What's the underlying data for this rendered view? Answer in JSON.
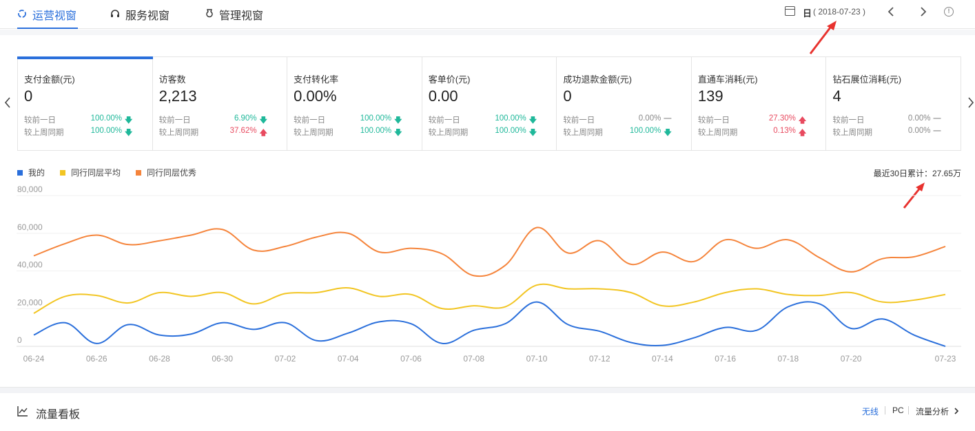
{
  "tabs": [
    {
      "label": "运营视窗",
      "icon": "operations-icon",
      "active": true
    },
    {
      "label": "服务视窗",
      "icon": "headset-icon",
      "active": false
    },
    {
      "label": "管理视窗",
      "icon": "management-icon",
      "active": false
    }
  ],
  "date": {
    "period": "日",
    "value": "( 2018-07-23 )"
  },
  "metrics": [
    {
      "title": "支付金额(元)",
      "value": "0",
      "cmp": [
        {
          "label": "较前一日",
          "value": "100.00%",
          "dir": "down"
        },
        {
          "label": "较上周同期",
          "value": "100.00%",
          "dir": "down"
        }
      ]
    },
    {
      "title": "访客数",
      "value": "2,213",
      "cmp": [
        {
          "label": "较前一日",
          "value": "6.90%",
          "dir": "down"
        },
        {
          "label": "较上周同期",
          "value": "37.62%",
          "dir": "up"
        }
      ]
    },
    {
      "title": "支付转化率",
      "value": "0.00%",
      "cmp": [
        {
          "label": "较前一日",
          "value": "100.00%",
          "dir": "down"
        },
        {
          "label": "较上周同期",
          "value": "100.00%",
          "dir": "down"
        }
      ]
    },
    {
      "title": "客单价(元)",
      "value": "0.00",
      "cmp": [
        {
          "label": "较前一日",
          "value": "100.00%",
          "dir": "down"
        },
        {
          "label": "较上周同期",
          "value": "100.00%",
          "dir": "down"
        }
      ]
    },
    {
      "title": "成功退款金额(元)",
      "value": "0",
      "cmp": [
        {
          "label": "较前一日",
          "value": "0.00%",
          "dir": "flat"
        },
        {
          "label": "较上周同期",
          "value": "100.00%",
          "dir": "down"
        }
      ]
    },
    {
      "title": "直通车消耗(元)",
      "value": "139",
      "cmp": [
        {
          "label": "较前一日",
          "value": "27.30%",
          "dir": "up"
        },
        {
          "label": "较上周同期",
          "value": "0.13%",
          "dir": "up"
        }
      ]
    },
    {
      "title": "钻石展位消耗(元)",
      "value": "4",
      "cmp": [
        {
          "label": "较前一日",
          "value": "0.00%",
          "dir": "flat"
        },
        {
          "label": "较上周同期",
          "value": "0.00%",
          "dir": "flat"
        }
      ]
    }
  ],
  "arrows": {
    "up": "🡅",
    "down": "🡇",
    "flat": "—"
  },
  "colors": {
    "accent": "#2a6fdb",
    "up": "#e84a5f",
    "down": "#1fb89a",
    "mine": "#2a6fdb",
    "avg": "#f2c522",
    "top": "#f5843b"
  },
  "legend": [
    {
      "label": "我的",
      "color": "#2a6fdb"
    },
    {
      "label": "同行同层平均",
      "color": "#f2c522"
    },
    {
      "label": "同行同层优秀",
      "color": "#f5843b"
    }
  ],
  "total_label": "最近30日累计：27.65万",
  "chart_data": {
    "type": "line",
    "x": [
      "06-24",
      "06-25",
      "06-26",
      "06-27",
      "06-28",
      "06-29",
      "06-30",
      "07-01",
      "07-02",
      "07-03",
      "07-04",
      "07-05",
      "07-06",
      "07-07",
      "07-08",
      "07-09",
      "07-10",
      "07-11",
      "07-12",
      "07-13",
      "07-14",
      "07-15",
      "07-16",
      "07-17",
      "07-18",
      "07-19",
      "07-20",
      "07-21",
      "07-22",
      "07-23"
    ],
    "x_tick_labels": [
      "06-24",
      "06-26",
      "06-28",
      "06-30",
      "07-02",
      "07-04",
      "07-06",
      "07-08",
      "07-10",
      "07-12",
      "07-14",
      "07-16",
      "07-18",
      "07-20",
      "07-23"
    ],
    "y_tick_labels": [
      "80,000",
      "60,000",
      "40,000",
      "20,000",
      "0"
    ],
    "ylim": [
      0,
      80000
    ],
    "series": [
      {
        "name": "我的",
        "color": "#2a6fdb",
        "values": [
          6000,
          12500,
          1500,
          11500,
          6000,
          6500,
          12500,
          9000,
          12500,
          3000,
          7000,
          13000,
          12000,
          1500,
          8500,
          12000,
          23500,
          11500,
          8000,
          2000,
          500,
          4500,
          10000,
          8500,
          21000,
          22500,
          9500,
          14500,
          6000,
          0
        ]
      },
      {
        "name": "同行同层平均",
        "color": "#f2c522",
        "values": [
          17500,
          26500,
          27000,
          23000,
          28500,
          26500,
          28500,
          22500,
          28000,
          28500,
          31000,
          26500,
          27500,
          20000,
          21500,
          21000,
          32500,
          30500,
          30500,
          28500,
          21500,
          23500,
          28500,
          30500,
          27500,
          27000,
          28500,
          23500,
          24500,
          27500
        ]
      },
      {
        "name": "同行同层优秀",
        "color": "#f5843b",
        "values": [
          48000,
          54500,
          59000,
          54000,
          56000,
          59000,
          62000,
          51000,
          53000,
          58000,
          60000,
          50000,
          52000,
          49000,
          37500,
          43000,
          63000,
          49500,
          56000,
          43500,
          50000,
          45000,
          56500,
          52000,
          56500,
          47000,
          39500,
          46500,
          47500,
          53000
        ]
      }
    ]
  },
  "board": {
    "title": "流量看板",
    "wireless": "无线",
    "pc": "PC",
    "analysis": "流量分析"
  }
}
